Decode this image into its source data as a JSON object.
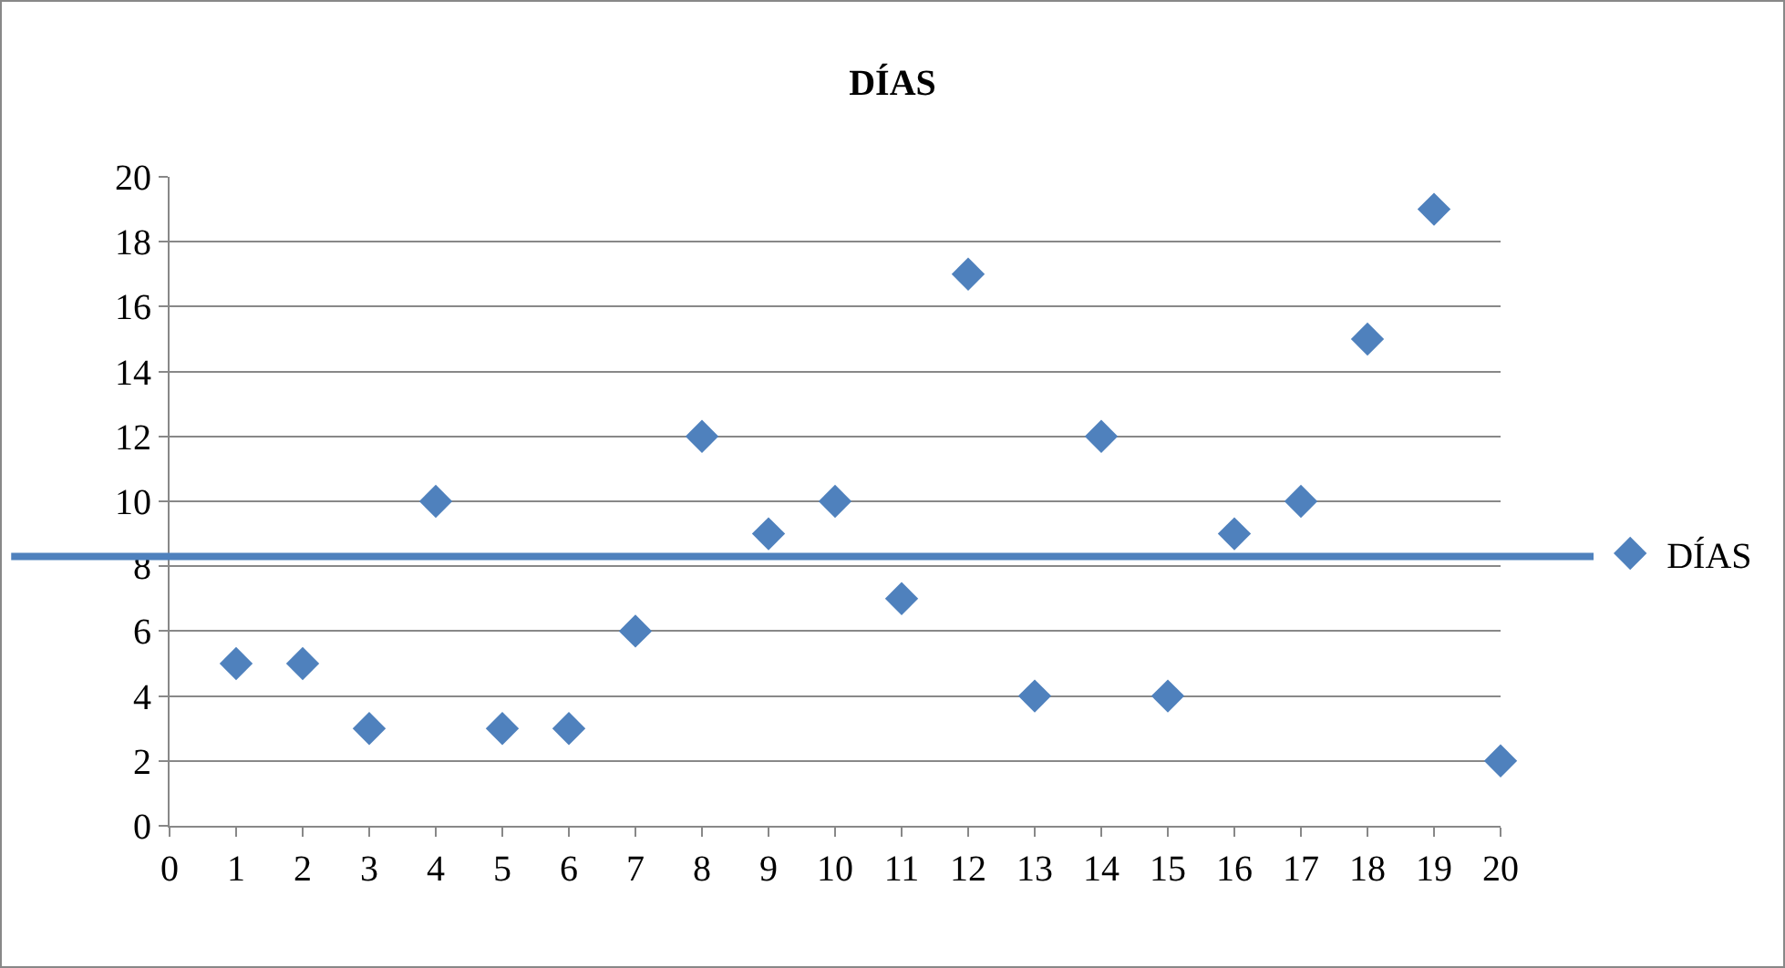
{
  "chart_data": {
    "type": "scatter",
    "title": "DÍAS",
    "x": [
      1,
      2,
      3,
      4,
      5,
      6,
      7,
      8,
      9,
      10,
      11,
      12,
      13,
      14,
      15,
      16,
      17,
      18,
      19,
      20
    ],
    "series": [
      {
        "name": "DÍAS",
        "color": "#4f81bd",
        "values": [
          5,
          5,
          3,
          10,
          3,
          3,
          6,
          12,
          9,
          10,
          7,
          17,
          4,
          12,
          4,
          9,
          10,
          15,
          19,
          2
        ]
      }
    ],
    "xlim": [
      0,
      20
    ],
    "xticks": [
      0,
      1,
      2,
      3,
      4,
      5,
      6,
      7,
      8,
      9,
      10,
      11,
      12,
      13,
      14,
      15,
      16,
      17,
      18,
      19,
      20
    ],
    "ylim": [
      0,
      20
    ],
    "yticks": [
      0,
      2,
      4,
      6,
      8,
      10,
      12,
      14,
      16,
      18,
      20
    ],
    "ref_lines": [
      {
        "axis": "y",
        "value": 8.3,
        "color": "#4f81bd"
      }
    ],
    "grid": "y",
    "legend": "right",
    "marker": "diamond"
  }
}
